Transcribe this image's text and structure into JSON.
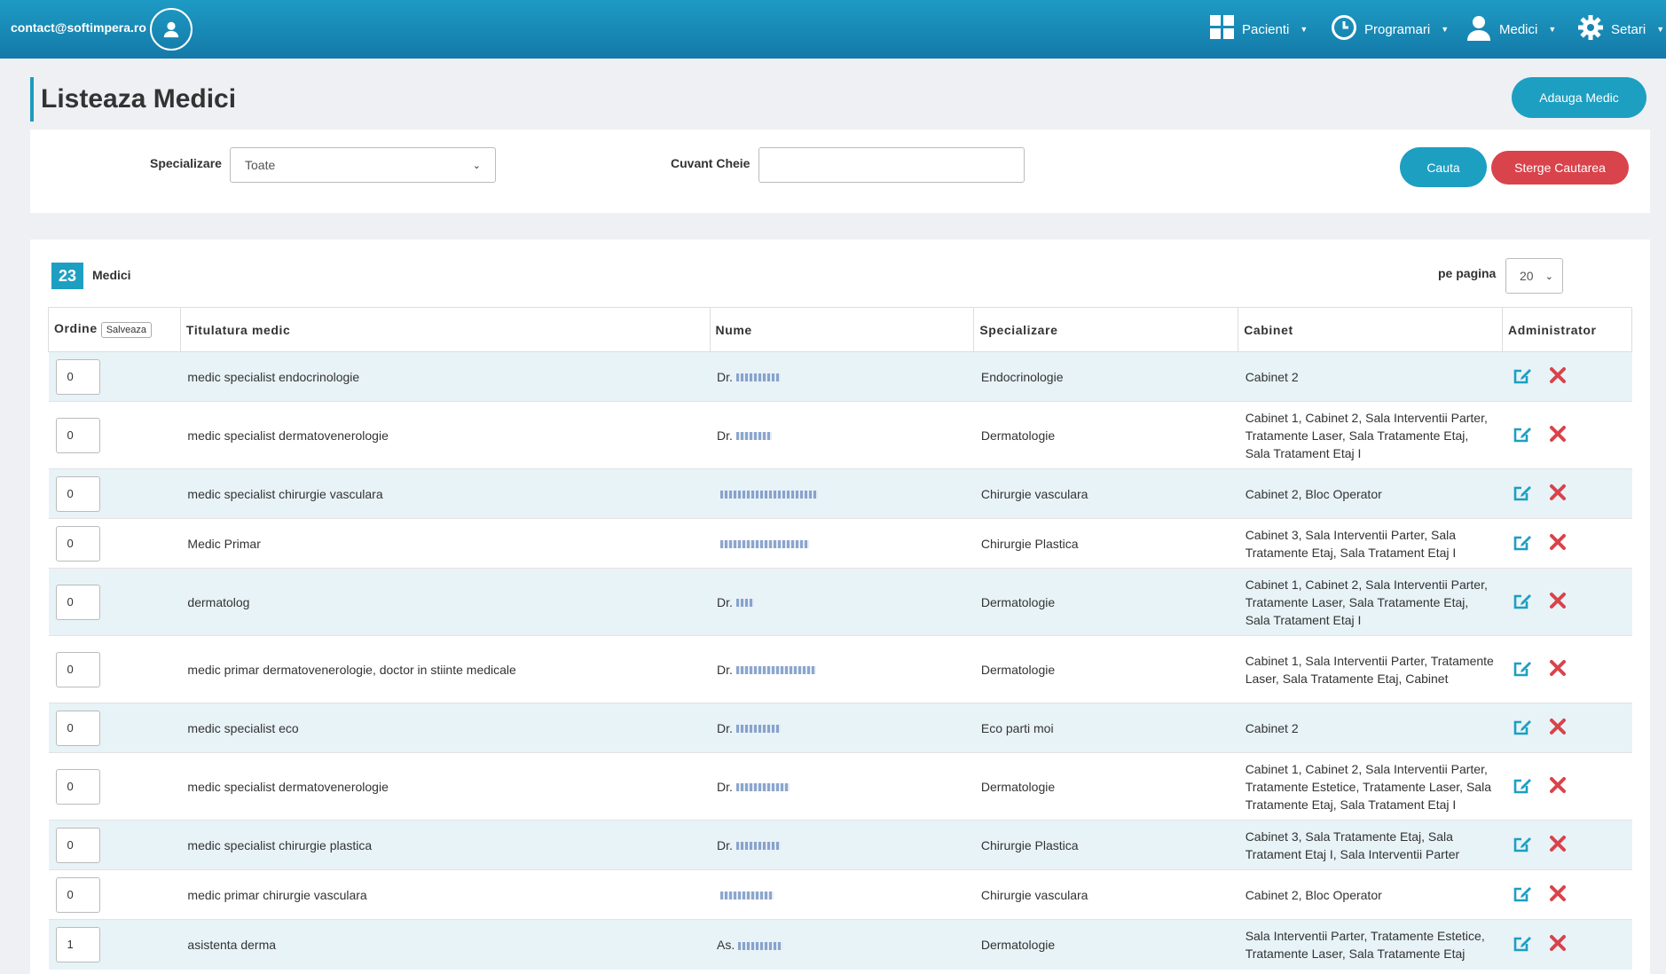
{
  "topbar": {
    "email": "contact@softimpera.ro",
    "nav": [
      {
        "label": "Pacienti",
        "icon": "grid-icon"
      },
      {
        "label": "Programari",
        "icon": "clock-icon"
      },
      {
        "label": "Medici",
        "icon": "user-icon"
      },
      {
        "label": "Setari",
        "icon": "gear-icon"
      }
    ]
  },
  "page": {
    "title": "Listeaza Medici",
    "add_button": "Adauga Medic"
  },
  "filters": {
    "specialization_label": "Specializare",
    "specialization_value": "Toate",
    "keyword_label": "Cuvant Cheie",
    "keyword_value": "",
    "search_button": "Cauta",
    "clear_button": "Sterge Cautarea"
  },
  "list": {
    "count": "23",
    "count_label": "Medici",
    "per_page_label": "pe pagina",
    "per_page_value": "20",
    "columns": {
      "order": "Ordine",
      "save": "Salveaza",
      "title": "Titulatura medic",
      "name": "Nume",
      "specialization": "Specializare",
      "cabinet": "Cabinet",
      "admin": "Administrator"
    },
    "rows": [
      {
        "order": "0",
        "title": "medic specialist endocrinologie",
        "name": "Dr.",
        "specialization": "Endocrinologie",
        "cabinet": "Cabinet 2"
      },
      {
        "order": "0",
        "title": "medic specialist dermatovenerologie",
        "name": "Dr.",
        "specialization": "Dermatologie",
        "cabinet": "Cabinet 1, Cabinet 2, Sala Interventii Parter, Tratamente Laser, Sala Tratamente Etaj, Sala Tratament Etaj I"
      },
      {
        "order": "0",
        "title": "medic specialist chirurgie vasculara",
        "name": "",
        "specialization": "Chirurgie vasculara",
        "cabinet": "Cabinet 2, Bloc Operator"
      },
      {
        "order": "0",
        "title": "Medic Primar",
        "name": "",
        "specialization": "Chirurgie Plastica",
        "cabinet": "Cabinet 3, Sala Interventii Parter, Sala Tratamente Etaj, Sala Tratament Etaj I"
      },
      {
        "order": "0",
        "title": "dermatolog",
        "name": "Dr.",
        "specialization": "Dermatologie",
        "cabinet": "Cabinet 1, Cabinet 2, Sala Interventii Parter, Tratamente Laser, Sala Tratamente Etaj, Sala Tratament Etaj I"
      },
      {
        "order": "0",
        "title": "medic primar dermatovenerologie, doctor in stiinte medicale",
        "name": "Dr.",
        "specialization": "Dermatologie",
        "cabinet": "Cabinet 1, Sala Interventii Parter, Tratamente Laser, Sala Tratamente Etaj, Cabinet"
      },
      {
        "order": "0",
        "title": "medic specialist eco",
        "name": "Dr.",
        "specialization": "Eco parti moi",
        "cabinet": "Cabinet 2"
      },
      {
        "order": "0",
        "title": "medic specialist dermatovenerologie",
        "name": "Dr.",
        "specialization": "Dermatologie",
        "cabinet": "Cabinet 1, Cabinet 2, Sala Interventii Parter, Tratamente Estetice, Tratamente Laser, Sala Tratamente Etaj, Sala Tratament Etaj I"
      },
      {
        "order": "0",
        "title": "medic specialist chirurgie plastica",
        "name": "Dr.",
        "specialization": "Chirurgie Plastica",
        "cabinet": "Cabinet 3, Sala Tratamente Etaj, Sala Tratament Etaj I, Sala Interventii Parter"
      },
      {
        "order": "0",
        "title": "medic primar chirurgie vasculara",
        "name": "",
        "specialization": "Chirurgie vasculara",
        "cabinet": "Cabinet 2, Bloc Operator"
      },
      {
        "order": "1",
        "title": "asistenta derma",
        "name": "As.",
        "specialization": "Dermatologie",
        "cabinet": "Sala Interventii Parter, Tratamente Estetice, Tratamente Laser, Sala Tratamente Etaj"
      }
    ]
  },
  "colors": {
    "accent": "#1d9fc2",
    "danger": "#d9434b",
    "row_alt": "#e8f3f7"
  }
}
